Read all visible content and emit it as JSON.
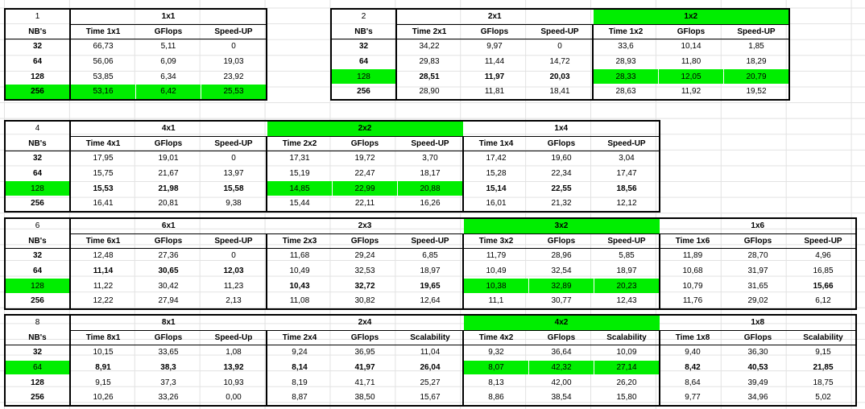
{
  "blocks": [
    {
      "num": "1",
      "groups": [
        {
          "title": "1x1",
          "green": false,
          "cols": [
            "Time 1x1",
            "GFlops",
            "Speed-UP"
          ],
          "rows": [
            [
              "66,73",
              "5,11",
              "0"
            ],
            [
              "56,06",
              "6,09",
              "19,03"
            ],
            [
              "53,85",
              "6,34",
              "23,92"
            ],
            [
              "53,16",
              "6,42",
              "25,53"
            ]
          ],
          "greenRows": [
            3
          ],
          "boldRows": []
        }
      ],
      "greenNbRows": [
        3
      ],
      "boldNbRows": [
        0,
        1,
        2,
        3
      ]
    },
    {
      "num": "2",
      "groups": [
        {
          "title": "2x1",
          "green": false,
          "cols": [
            "Time 2x1",
            "GFlops",
            "Speed-UP"
          ],
          "rows": [
            [
              "34,22",
              "9,97",
              "0"
            ],
            [
              "29,83",
              "11,44",
              "14,72"
            ],
            [
              "28,51",
              "11,97",
              "20,03"
            ],
            [
              "28,90",
              "11,81",
              "18,41"
            ]
          ],
          "greenRows": [],
          "boldRows": [
            2
          ]
        },
        {
          "title": "1x2",
          "green": true,
          "cols": [
            "Time 1x2",
            "GFlops",
            "Speed-UP"
          ],
          "rows": [
            [
              "33,6",
              "10,14",
              "1,85"
            ],
            [
              "28,93",
              "11,80",
              "18,29"
            ],
            [
              "28,33",
              "12,05",
              "20,79"
            ],
            [
              "28,63",
              "11,92",
              "19,52"
            ]
          ],
          "greenRows": [
            2
          ],
          "boldRows": []
        }
      ],
      "greenNbRows": [
        2
      ],
      "boldNbRows": [
        0,
        1,
        3
      ]
    },
    {
      "num": "4",
      "groups": [
        {
          "title": "4x1",
          "green": false,
          "cols": [
            "Time 4x1",
            "GFlops",
            "Speed-UP"
          ],
          "rows": [
            [
              "17,95",
              "19,01",
              "0"
            ],
            [
              "15,75",
              "21,67",
              "13,97"
            ],
            [
              "15,53",
              "21,98",
              "15,58"
            ],
            [
              "16,41",
              "20,81",
              "9,38"
            ]
          ],
          "greenRows": [],
          "boldRows": [
            2
          ]
        },
        {
          "title": "2x2",
          "green": true,
          "cols": [
            "Time 2x2",
            "GFlops",
            "Speed-UP"
          ],
          "rows": [
            [
              "17,31",
              "19,72",
              "3,70"
            ],
            [
              "15,19",
              "22,47",
              "18,17"
            ],
            [
              "14,85",
              "22,99",
              "20,88"
            ],
            [
              "15,44",
              "22,11",
              "16,26"
            ]
          ],
          "greenRows": [
            2
          ],
          "boldRows": []
        },
        {
          "title": "1x4",
          "green": false,
          "cols": [
            "Time 1x4",
            "GFlops",
            "Speed-UP"
          ],
          "rows": [
            [
              "17,42",
              "19,60",
              "3,04"
            ],
            [
              "15,28",
              "22,34",
              "17,47"
            ],
            [
              "15,14",
              "22,55",
              "18,56"
            ],
            [
              "16,01",
              "21,32",
              "12,12"
            ]
          ],
          "greenRows": [],
          "boldRows": [
            2
          ]
        }
      ],
      "greenNbRows": [
        2
      ],
      "boldNbRows": [
        0,
        1,
        3
      ]
    },
    {
      "num": "6",
      "groups": [
        {
          "title": "6x1",
          "green": false,
          "cols": [
            "Time 6x1",
            "GFlops",
            "Speed-UP"
          ],
          "rows": [
            [
              "12,48",
              "27,36",
              "0"
            ],
            [
              "11,14",
              "30,65",
              "12,03"
            ],
            [
              "11,22",
              "30,42",
              "11,23"
            ],
            [
              "12,22",
              "27,94",
              "2,13"
            ]
          ],
          "greenRows": [],
          "boldRows": [
            1
          ]
        },
        {
          "title": "2x3",
          "green": false,
          "cols": [
            "Time 2x3",
            "GFlops",
            "Speed-UP"
          ],
          "rows": [
            [
              "11,68",
              "29,24",
              "6,85"
            ],
            [
              "10,49",
              "32,53",
              "18,97"
            ],
            [
              "10,43",
              "32,72",
              "19,65"
            ],
            [
              "11,08",
              "30,82",
              "12,64"
            ]
          ],
          "greenRows": [],
          "boldRows": [
            2
          ]
        },
        {
          "title": "3x2",
          "green": true,
          "cols": [
            "Time 3x2",
            "GFlops",
            "Speed-UP"
          ],
          "rows": [
            [
              "11,79",
              "28,96",
              "5,85"
            ],
            [
              "10,49",
              "32,54",
              "18,97"
            ],
            [
              "10,38",
              "32,89",
              "20,23"
            ],
            [
              "11,1",
              "30,77",
              "12,43"
            ]
          ],
          "greenRows": [
            2
          ],
          "boldRows": []
        },
        {
          "title": "1x6",
          "green": false,
          "cols": [
            "Time 1x6",
            "GFlops",
            "Speed-UP"
          ],
          "rows": [
            [
              "11,89",
              "28,70",
              "4,96"
            ],
            [
              "10,68",
              "31,97",
              "16,85"
            ],
            [
              "10,79",
              "31,65",
              "15,66"
            ],
            [
              "11,76",
              "29,02",
              "6,12"
            ]
          ],
          "greenRows": [],
          "boldRows": [],
          "boldCells": [
            [
              2,
              2
            ]
          ]
        }
      ],
      "greenNbRows": [
        2
      ],
      "boldNbRows": [
        0,
        1,
        3
      ]
    },
    {
      "num": "8",
      "groups": [
        {
          "title": "8x1",
          "green": false,
          "cols": [
            "Time 8x1",
            "GFlops",
            "Speed-Up"
          ],
          "rows": [
            [
              "10,15",
              "33,65",
              "1,08"
            ],
            [
              "8,91",
              "38,3",
              "13,92"
            ],
            [
              "9,15",
              "37,3",
              "10,93"
            ],
            [
              "10,26",
              "33,26",
              "0,00"
            ]
          ],
          "greenRows": [],
          "boldRows": [
            1
          ]
        },
        {
          "title": "2x4",
          "green": false,
          "cols": [
            "Time 2x4",
            "GFlops",
            "Scalability"
          ],
          "rows": [
            [
              "9,24",
              "36,95",
              "11,04"
            ],
            [
              "8,14",
              "41,97",
              "26,04"
            ],
            [
              "8,19",
              "41,71",
              "25,27"
            ],
            [
              "8,87",
              "38,50",
              "15,67"
            ]
          ],
          "greenRows": [],
          "boldRows": [
            1
          ]
        },
        {
          "title": "4x2",
          "green": true,
          "cols": [
            "Time 4x2",
            "GFlops",
            "Scalability"
          ],
          "rows": [
            [
              "9,32",
              "36,64",
              "10,09"
            ],
            [
              "8,07",
              "42,32",
              "27,14"
            ],
            [
              "8,13",
              "42,00",
              "26,20"
            ],
            [
              "8,86",
              "38,54",
              "15,80"
            ]
          ],
          "greenRows": [
            1
          ],
          "boldRows": []
        },
        {
          "title": "1x8",
          "green": false,
          "cols": [
            "Time 1x8",
            "GFlops",
            "Scalability"
          ],
          "rows": [
            [
              "9,40",
              "36,30",
              "9,15"
            ],
            [
              "8,42",
              "40,53",
              "21,85"
            ],
            [
              "8,64",
              "39,49",
              "18,75"
            ],
            [
              "9,77",
              "34,96",
              "5,02"
            ]
          ],
          "greenRows": [],
          "boldRows": [
            1
          ]
        }
      ],
      "greenNbRows": [
        1
      ],
      "boldNbRows": [
        0,
        2,
        3
      ]
    }
  ],
  "nbHeader": "NB's",
  "nbValues": [
    "32",
    "64",
    "128",
    "256"
  ]
}
